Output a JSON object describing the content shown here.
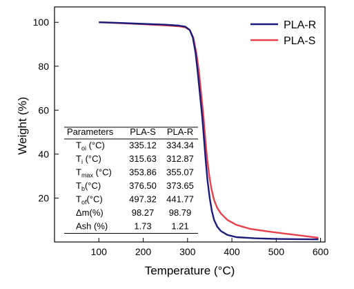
{
  "chart_data": {
    "type": "line",
    "title": "",
    "xlabel": "Temperature (°C)",
    "ylabel": "Weight (%)",
    "xlim": [
      0,
      610
    ],
    "ylim": [
      0,
      107
    ],
    "xticks": [
      100,
      200,
      300,
      400,
      500,
      600
    ],
    "yticks": [
      20,
      40,
      60,
      80,
      100
    ],
    "grid": false,
    "legend_position": "top-right",
    "series": [
      {
        "name": "PLA-R",
        "color": "#1a1a7a",
        "points": [
          [
            100,
            100
          ],
          [
            150,
            99.7
          ],
          [
            200,
            99.3
          ],
          [
            250,
            98.9
          ],
          [
            280,
            98.5
          ],
          [
            295,
            98.0
          ],
          [
            305,
            96.5
          ],
          [
            312,
            93
          ],
          [
            318,
            86
          ],
          [
            323,
            77
          ],
          [
            328,
            67
          ],
          [
            333,
            57
          ],
          [
            337,
            47
          ],
          [
            341,
            37
          ],
          [
            345,
            28
          ],
          [
            350,
            20
          ],
          [
            355,
            14
          ],
          [
            360,
            10
          ],
          [
            367,
            7
          ],
          [
            375,
            5
          ],
          [
            390,
            3.2
          ],
          [
            410,
            2.2
          ],
          [
            450,
            1.7
          ],
          [
            500,
            1.4
          ],
          [
            550,
            1.3
          ],
          [
            595,
            1.2
          ]
        ]
      },
      {
        "name": "PLA-S",
        "color": "#e8404a",
        "points": [
          [
            100,
            100
          ],
          [
            150,
            99.6
          ],
          [
            200,
            99.1
          ],
          [
            250,
            98.6
          ],
          [
            280,
            98.2
          ],
          [
            295,
            97.7
          ],
          [
            305,
            96.5
          ],
          [
            313,
            93
          ],
          [
            320,
            86
          ],
          [
            326,
            77
          ],
          [
            331,
            67
          ],
          [
            336,
            57
          ],
          [
            340,
            47
          ],
          [
            344,
            38
          ],
          [
            349,
            30
          ],
          [
            354,
            24
          ],
          [
            360,
            19
          ],
          [
            367,
            15.5
          ],
          [
            375,
            13
          ],
          [
            390,
            10
          ],
          [
            410,
            7.8
          ],
          [
            440,
            6.0
          ],
          [
            480,
            4.8
          ],
          [
            520,
            3.8
          ],
          [
            560,
            2.8
          ],
          [
            595,
            1.9
          ]
        ]
      }
    ],
    "table": {
      "headers": [
        "Parameters",
        "PLA-S",
        "PLA-R"
      ],
      "rows": [
        {
          "param": "T",
          "sub": "oi",
          "unit": " (°C)",
          "s": "335.12",
          "r": "334.34"
        },
        {
          "param": "T",
          "sub": "i",
          "unit": " (°C)",
          "s": "315.63",
          "r": "312.87"
        },
        {
          "param": "T",
          "sub": "max",
          "unit": " (°C)",
          "s": "353.86",
          "r": "355.07"
        },
        {
          "param": "T",
          "sub": "b",
          "unit": "(°C)",
          "s": "376.50",
          "r": "373.65"
        },
        {
          "param": "T",
          "sub": "of",
          "unit": "(°C)",
          "s": "497.32",
          "r": "441.77"
        },
        {
          "param": "Δm(%)",
          "sub": "",
          "unit": "",
          "s": "98.27",
          "r": "98.79"
        },
        {
          "param": "Ash (%)",
          "sub": "",
          "unit": "",
          "s": "1.73",
          "r": "1.21"
        }
      ]
    }
  }
}
